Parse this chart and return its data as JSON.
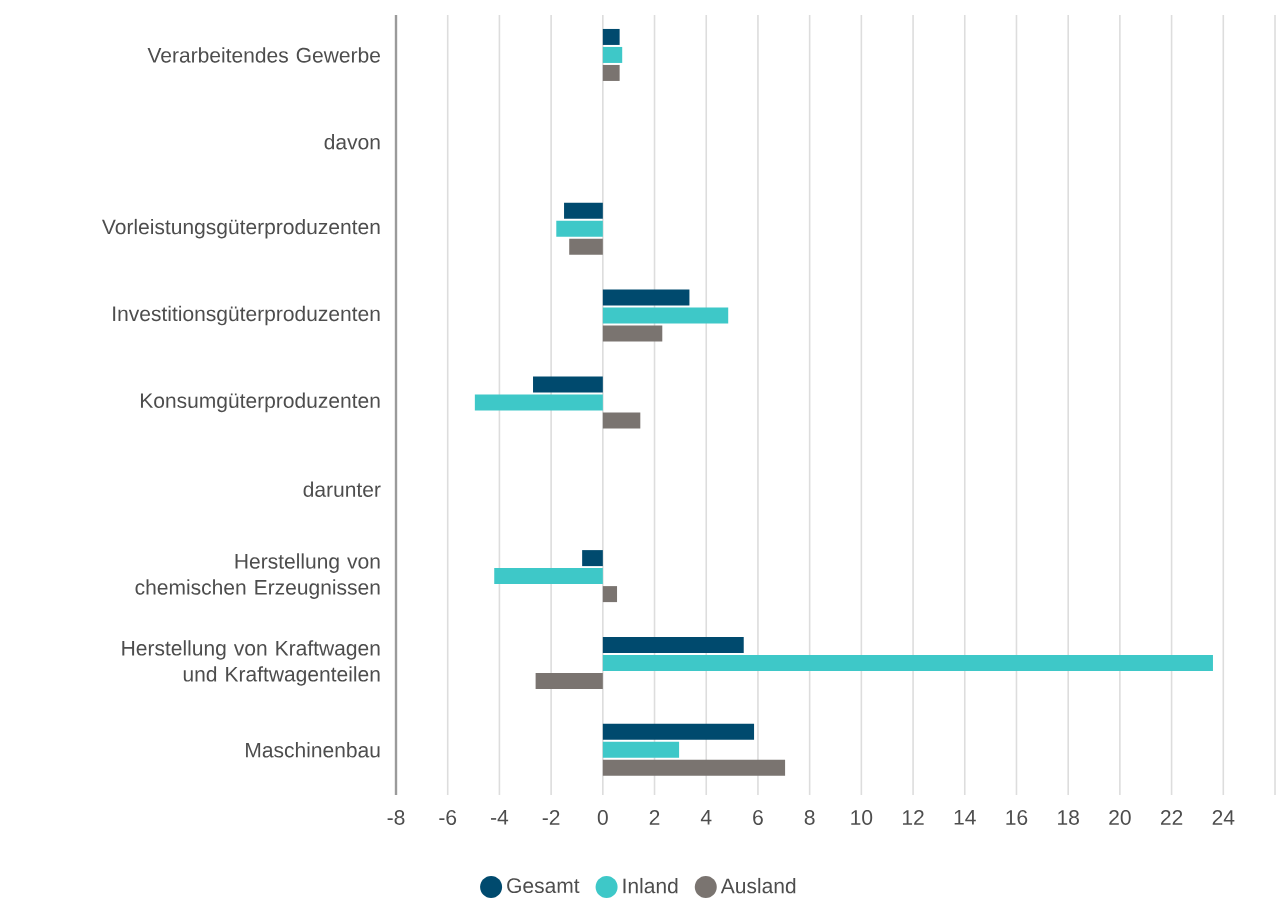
{
  "chart_data": {
    "type": "bar",
    "orientation": "horizontal",
    "categories": [
      "Verarbeitendes Gewerbe",
      "davon",
      "Vorleistungsgüterproduzenten",
      "Investitionsgüterproduzenten",
      "Konsumgüterproduzenten",
      "darunter",
      "Herstellung von chemischen Erzeugnissen",
      "Herstellung von Kraftwagen und Kraftwagenteilen",
      "Maschinenbau"
    ],
    "series": [
      {
        "name": "Gesamt",
        "color": "#004a6e",
        "values": [
          0.65,
          null,
          -1.5,
          3.35,
          -2.7,
          null,
          -0.8,
          5.45,
          5.85
        ]
      },
      {
        "name": "Inland",
        "color": "#3ec8c8",
        "values": [
          0.75,
          null,
          -1.8,
          4.85,
          -4.95,
          null,
          -4.2,
          23.6,
          2.95
        ]
      },
      {
        "name": "Ausland",
        "color": "#7a7470",
        "values": [
          0.65,
          null,
          -1.3,
          2.3,
          1.45,
          null,
          0.55,
          -2.6,
          7.05
        ]
      }
    ],
    "xlim": [
      -8,
      26
    ],
    "xticks": [
      -8,
      -6,
      -4,
      -2,
      0,
      2,
      4,
      6,
      8,
      10,
      12,
      14,
      16,
      18,
      20,
      22,
      24,
      {
        "value": 26,
        "label": null
      }
    ],
    "grid": "x",
    "legend": "bottom"
  }
}
